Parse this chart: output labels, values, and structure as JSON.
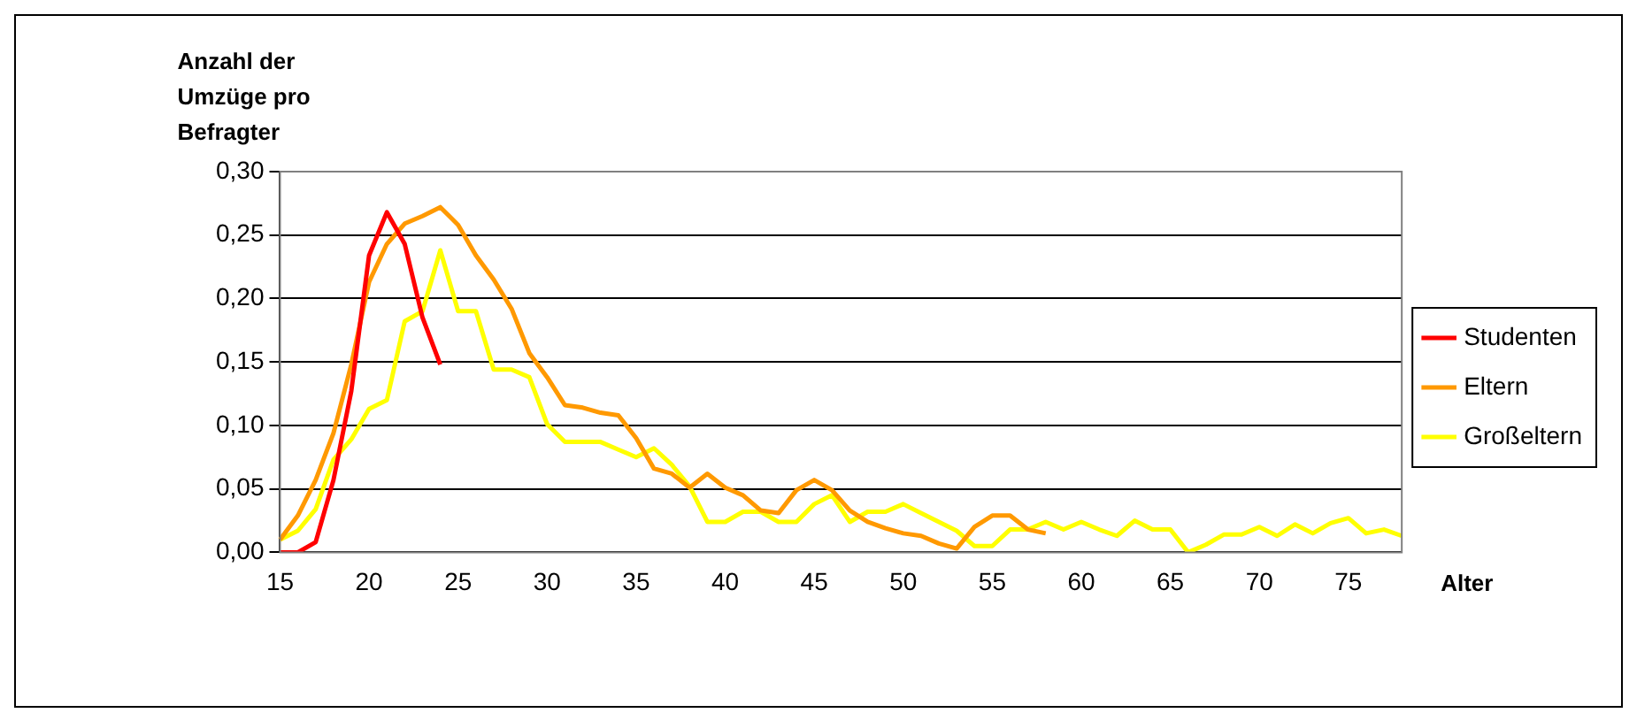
{
  "chart_data": {
    "type": "line",
    "ylabel": "Anzahl der Umzüge pro Befragter",
    "xlabel": "Alter",
    "categories": [
      "15",
      null,
      null,
      null,
      null,
      "20",
      null,
      null,
      null,
      null,
      "25",
      null,
      null,
      null,
      null,
      "30",
      null,
      null,
      null,
      null,
      "35",
      null,
      null,
      null,
      null,
      "40",
      null,
      null,
      null,
      null,
      "45",
      null,
      null,
      null,
      null,
      "50",
      null,
      null,
      null,
      null,
      "55",
      null,
      null,
      null,
      null,
      "60",
      null,
      null,
      null,
      null,
      "65",
      null,
      null,
      null,
      null,
      "70",
      null,
      null,
      null,
      null,
      "75",
      null,
      null,
      null
    ],
    "series": [
      {
        "name": "Studenten",
        "color": "#ff0000",
        "values": [
          0,
          0,
          0.008,
          0.057,
          0.127,
          0.234,
          0.268,
          0.243,
          0.185,
          0.148,
          null,
          null,
          null,
          null,
          null,
          null,
          null,
          null,
          null,
          null,
          null,
          null,
          null,
          null,
          null,
          null,
          null,
          null,
          null,
          null,
          null,
          null,
          null,
          null,
          null,
          null,
          null,
          null,
          null,
          null,
          null,
          null,
          null,
          null,
          null,
          null,
          null,
          null,
          null,
          null,
          null,
          null,
          null,
          null,
          null,
          null,
          null,
          null,
          null,
          null,
          null,
          null,
          null,
          null
        ]
      },
      {
        "name": "Eltern",
        "color": "#ff9900",
        "values": [
          0.01,
          0.029,
          0.057,
          0.094,
          0.148,
          0.213,
          0.243,
          0.259,
          0.265,
          0.272,
          0.258,
          0.234,
          0.215,
          0.192,
          0.157,
          0.138,
          0.116,
          0.114,
          0.11,
          0.108,
          0.09,
          0.066,
          0.062,
          0.051,
          0.062,
          0.051,
          0.045,
          0.033,
          0.031,
          0.049,
          0.057,
          0.049,
          0.033,
          0.024,
          0.019,
          0.015,
          0.013,
          0.007,
          0.003,
          0.02,
          0.029,
          0.029,
          0.018,
          0.015,
          null,
          null,
          null,
          null,
          null,
          null,
          null,
          null,
          null,
          null,
          null,
          null,
          null,
          null,
          null,
          null,
          null,
          null,
          null,
          null
        ]
      },
      {
        "name": "Großeltern",
        "color": "#ffff00",
        "values": [
          0.01,
          0.017,
          0.034,
          0.073,
          0.089,
          0.113,
          0.12,
          0.182,
          0.19,
          0.238,
          0.19,
          0.19,
          0.144,
          0.144,
          0.138,
          0.101,
          0.087,
          0.087,
          0.087,
          0.081,
          0.075,
          0.082,
          0.069,
          0.052,
          0.024,
          0.024,
          0.032,
          0.032,
          0.024,
          0.024,
          0.038,
          0.045,
          0.024,
          0.032,
          0.032,
          0.038,
          0.031,
          0.024,
          0.017,
          0.005,
          0.005,
          0.018,
          0.018,
          0.024,
          0.018,
          0.024,
          0.018,
          0.013,
          0.025,
          0.018,
          0.018,
          0,
          0.006,
          0.014,
          0.014,
          0.02,
          0.013,
          0.022,
          0.015,
          0.023,
          0.027,
          0.015,
          0.018,
          0.013
        ]
      }
    ],
    "ylim": [
      0,
      0.3
    ],
    "yticks": [
      {
        "value": 0,
        "label": "0,00"
      },
      {
        "value": 0.05,
        "label": "0,05"
      },
      {
        "value": 0.1,
        "label": "0,10"
      },
      {
        "value": 0.15,
        "label": "0,15"
      },
      {
        "value": 0.2,
        "label": "0,20"
      },
      {
        "value": 0.25,
        "label": "0,25"
      },
      {
        "value": 0.3,
        "label": "0,30"
      }
    ],
    "grid": "y",
    "legend": "right",
    "marker": "none",
    "line_style": "solid"
  }
}
